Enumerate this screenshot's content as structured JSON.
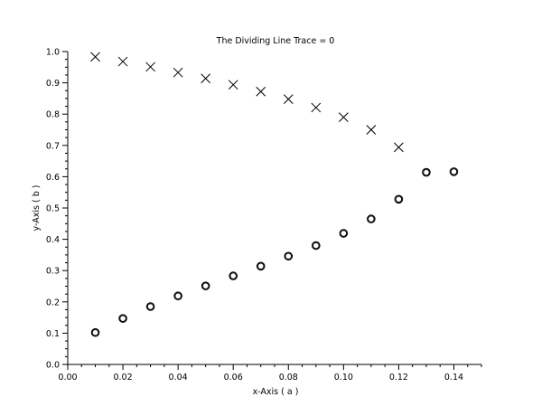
{
  "chart_data": {
    "type": "scatter",
    "title": "The Dividing Line Trace = 0",
    "xlabel": "x-Axis ( a )",
    "ylabel": "y-Axis ( b )",
    "xlim": [
      0,
      0.15
    ],
    "ylim": [
      0,
      1.0
    ],
    "xticks": [
      "0.00",
      "0.02",
      "0.04",
      "0.06",
      "0.08",
      "0.10",
      "0.12",
      "0.14"
    ],
    "yticks": [
      "0.0",
      "0.1",
      "0.2",
      "0.3",
      "0.4",
      "0.5",
      "0.6",
      "0.7",
      "0.8",
      "0.9",
      "1.0"
    ],
    "grid": false,
    "series": [
      {
        "marker": "x",
        "color": "#000000",
        "x": [
          0.01,
          0.02,
          0.03,
          0.04,
          0.05,
          0.06,
          0.07,
          0.08,
          0.09,
          0.1,
          0.11,
          0.12
        ],
        "y": [
          0.983,
          0.968,
          0.951,
          0.933,
          0.914,
          0.894,
          0.872,
          0.848,
          0.821,
          0.79,
          0.75,
          0.694
        ]
      },
      {
        "marker": "o",
        "color": "#000000",
        "x": [
          0.01,
          0.02,
          0.03,
          0.04,
          0.05,
          0.06,
          0.07,
          0.08,
          0.09,
          0.1,
          0.11,
          0.12,
          0.13,
          0.14
        ],
        "y": [
          0.102,
          0.147,
          0.185,
          0.219,
          0.251,
          0.283,
          0.314,
          0.346,
          0.38,
          0.419,
          0.465,
          0.528,
          0.614,
          0.616
        ]
      }
    ]
  }
}
